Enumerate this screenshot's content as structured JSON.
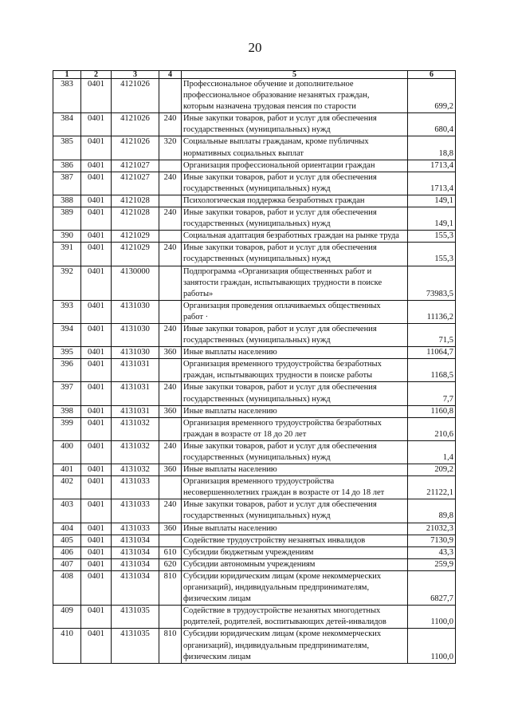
{
  "page_number": "20",
  "columns": [
    "1",
    "2",
    "3",
    "4",
    "5",
    "6"
  ],
  "rows": [
    {
      "n": "383",
      "sec": "0401",
      "code": "4121026",
      "type": "",
      "lines": [
        "Профессиональное обучение и дополнительное",
        "профессиональное образование незанятых граждан,",
        "которым назначена трудовая пенсия по старости"
      ],
      "value": "699,2"
    },
    {
      "n": "384",
      "sec": "0401",
      "code": "4121026",
      "type": "240",
      "lines": [
        "Иные закупки товаров, работ и услуг для обеспечения",
        "государственных (муниципальных) нужд"
      ],
      "value": "680,4"
    },
    {
      "n": "385",
      "sec": "0401",
      "code": "4121026",
      "type": "320",
      "lines": [
        "Социальные выплаты гражданам, кроме публичных",
        "нормативных социальных выплат"
      ],
      "value": "18,8"
    },
    {
      "n": "386",
      "sec": "0401",
      "code": "4121027",
      "type": "",
      "lines": [
        "Организация профессиональной ориентации граждан"
      ],
      "value": "1713,4"
    },
    {
      "n": "387",
      "sec": "0401",
      "code": "4121027",
      "type": "240",
      "lines": [
        "Иные закупки товаров, работ и услуг для обеспечения",
        "государственных (муниципальных) нужд"
      ],
      "value": "1713,4"
    },
    {
      "n": "388",
      "sec": "0401",
      "code": "4121028",
      "type": "",
      "lines": [
        "Психологическая поддержка безработных граждан"
      ],
      "value": "149,1"
    },
    {
      "n": "389",
      "sec": "0401",
      "code": "4121028",
      "type": "240",
      "lines": [
        "Иные закупки товаров, работ и услуг для обеспечения",
        "государственных (муниципальных) нужд"
      ],
      "value": "149,1"
    },
    {
      "n": "390",
      "sec": "0401",
      "code": "4121029",
      "type": "",
      "lines": [
        "Социальная адаптация безработных граждан на рынке труда"
      ],
      "value": "155,3"
    },
    {
      "n": "391",
      "sec": "0401",
      "code": "4121029",
      "type": "240",
      "lines": [
        "Иные закупки товаров, работ и услуг для обеспечения",
        "государственных (муниципальных) нужд"
      ],
      "value": "155,3"
    },
    {
      "n": "392",
      "sec": "0401",
      "code": "4130000",
      "type": "",
      "lines": [
        "Подпрограмма «Организация общественных работ и",
        "занятости граждан, испытывающих трудности в поиске",
        "работы»"
      ],
      "value": "73983,5"
    },
    {
      "n": "393",
      "sec": "0401",
      "code": "4131030",
      "type": "",
      "lines": [
        "Организация проведения оплачиваемых общественных",
        "работ ·"
      ],
      "value": "11136,2"
    },
    {
      "n": "394",
      "sec": "0401",
      "code": "4131030",
      "type": "240",
      "lines": [
        "Иные закупки товаров, работ и услуг для обеспечения",
        "государственных (муниципальных) нужд"
      ],
      "value": "71,5"
    },
    {
      "n": "395",
      "sec": "0401",
      "code": "4131030",
      "type": "360",
      "lines": [
        "Иные выплаты населению"
      ],
      "value": "11064,7"
    },
    {
      "n": "396",
      "sec": "0401",
      "code": "4131031",
      "type": "",
      "lines": [
        "Организация временного трудоустройства безработных",
        "граждан, испытывающих трудности в поиске работы"
      ],
      "value": "1168,5"
    },
    {
      "n": "397",
      "sec": "0401",
      "code": "4131031",
      "type": "240",
      "lines": [
        "Иные закупки товаров, работ и услуг для обеспечения",
        "государственных (муниципальных) нужд"
      ],
      "value": "7,7"
    },
    {
      "n": "398",
      "sec": "0401",
      "code": "4131031",
      "type": "360",
      "lines": [
        "Иные выплаты населению"
      ],
      "value": "1160,8"
    },
    {
      "n": "399",
      "sec": "0401",
      "code": "4131032",
      "type": "",
      "lines": [
        "Организация временного трудоустройства безработных",
        "граждан в возрасте от 18 до 20 лет"
      ],
      "value": "210,6"
    },
    {
      "n": "400",
      "sec": "0401",
      "code": "4131032",
      "type": "240",
      "lines": [
        "Иные закупки товаров, работ и услуг для обеспечения",
        "государственных (муниципальных) нужд"
      ],
      "value": "1,4"
    },
    {
      "n": "401",
      "sec": "0401",
      "code": "4131032",
      "type": "360",
      "lines": [
        "Иные выплаты населению"
      ],
      "value": "209,2"
    },
    {
      "n": "402",
      "sec": "0401",
      "code": "4131033",
      "type": "",
      "lines": [
        "Организация временного трудоустройства",
        "несовершеннолетних граждан в возрасте от 14 до 18 лет"
      ],
      "value": "21122,1"
    },
    {
      "n": "403",
      "sec": "0401",
      "code": "4131033",
      "type": "240",
      "lines": [
        "Иные закупки товаров, работ и услуг для обеспечения",
        "государственных (муниципальных) нужд"
      ],
      "value": "89,8"
    },
    {
      "n": "404",
      "sec": "0401",
      "code": "4131033",
      "type": "360",
      "lines": [
        "Иные выплаты населению"
      ],
      "value": "21032,3"
    },
    {
      "n": "405",
      "sec": "0401",
      "code": "4131034",
      "type": "",
      "lines": [
        "Содействие трудоустройству незанятых инвалидов"
      ],
      "value": "7130,9"
    },
    {
      "n": "406",
      "sec": "0401",
      "code": "4131034",
      "type": "610",
      "lines": [
        "Субсидии бюджетным учреждениям"
      ],
      "value": "43,3"
    },
    {
      "n": "407",
      "sec": "0401",
      "code": "4131034",
      "type": "620",
      "lines": [
        "Субсидии автономным учреждениям"
      ],
      "value": "259,9"
    },
    {
      "n": "408",
      "sec": "0401",
      "code": "4131034",
      "type": "810",
      "lines": [
        "Субсидии юридическим лицам (кроме некоммерческих",
        "организаций), индивидуальным предпринимателям,",
        "физическим лицам"
      ],
      "value": "6827,7"
    },
    {
      "n": "409",
      "sec": "0401",
      "code": "4131035",
      "type": "",
      "lines": [
        "Содействие в трудоустройстве незанятых многодетных",
        "родителей, родителей, воспитывающих детей-инвалидов"
      ],
      "value": "1100,0"
    },
    {
      "n": "410",
      "sec": "0401",
      "code": "4131035",
      "type": "810",
      "lines": [
        "Субсидии юридическим лицам (кроме некоммерческих",
        "организаций), индивидуальным предпринимателям,",
        "физическим лицам"
      ],
      "value": "1100,0"
    }
  ]
}
